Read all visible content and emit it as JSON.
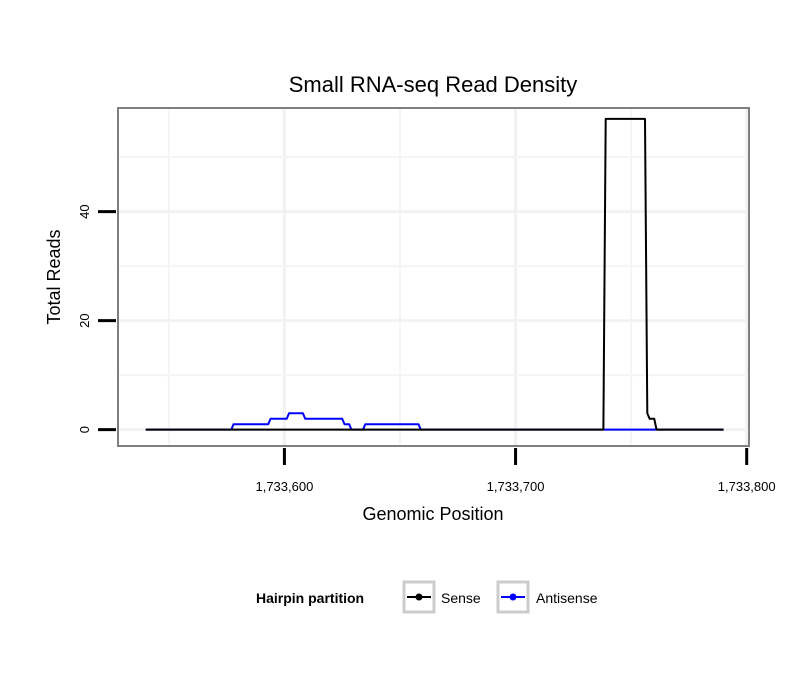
{
  "chart_data": {
    "type": "line",
    "title": "Small RNA-seq Read Density",
    "xlabel": "Genomic Position",
    "ylabel": "Total Reads",
    "xlim": [
      1733528,
      1733801
    ],
    "ylim": [
      -3,
      59
    ],
    "x_ticks": [
      {
        "value": 1733600,
        "label": "1,733,600"
      },
      {
        "value": 1733700,
        "label": "1,733,700"
      },
      {
        "value": 1733800,
        "label": "1,733,800"
      }
    ],
    "y_ticks": [
      {
        "value": 0,
        "label": "0"
      },
      {
        "value": 20,
        "label": "20"
      },
      {
        "value": 40,
        "label": "40"
      }
    ],
    "grid": true,
    "legend": {
      "title": "Hairpin partition",
      "position": "bottom"
    },
    "series": [
      {
        "name": "Sense",
        "color": "#000000",
        "x": [
          1733540,
          1733738,
          1733739,
          1733756,
          1733757,
          1733758,
          1733760,
          1733761,
          1733790
        ],
        "y": [
          0,
          0,
          57,
          57,
          3,
          2,
          2,
          0,
          0
        ]
      },
      {
        "name": "Antisense",
        "color": "#0000ff",
        "x": [
          1733540,
          1733577,
          1733578,
          1733593,
          1733594,
          1733601,
          1733602,
          1733608,
          1733609,
          1733625,
          1733626,
          1733628,
          1733629,
          1733634,
          1733635,
          1733658,
          1733659,
          1733790
        ],
        "y": [
          0,
          0,
          1,
          1,
          2,
          2,
          3,
          3,
          2,
          2,
          1,
          1,
          0,
          0,
          1,
          1,
          0,
          0
        ]
      }
    ]
  }
}
